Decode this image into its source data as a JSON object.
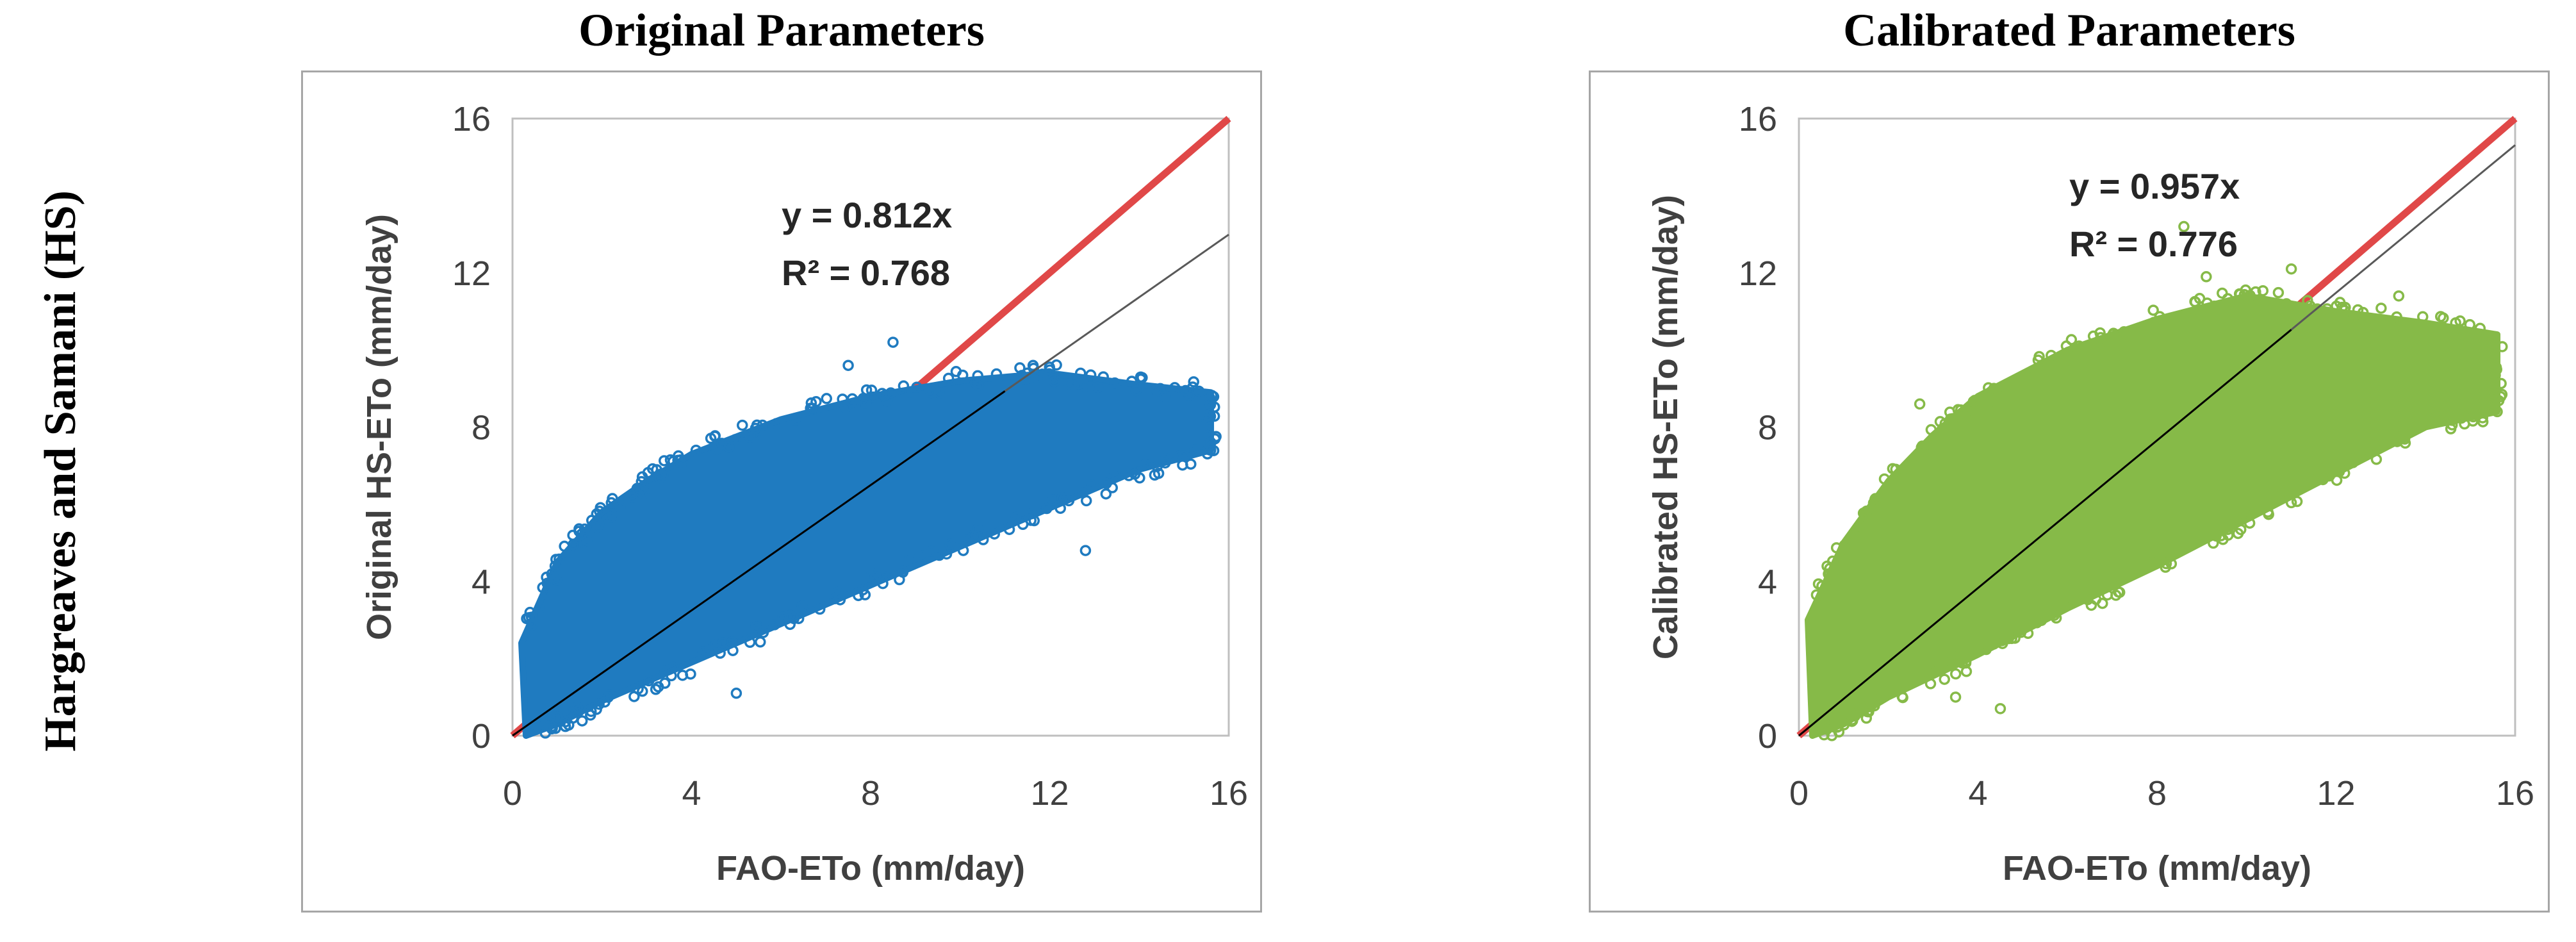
{
  "row_label": "Hargreaves and Samani (HS)",
  "colors": {
    "original_points": "#1f7bc0",
    "calibrated_points": "#86ba48",
    "one_to_one_line": "#e04848",
    "fit_line_black": "#000000",
    "fit_line_gray": "#595959"
  },
  "chart_data": [
    {
      "type": "scatter",
      "title": "Original Parameters",
      "xlabel": "FAO-ETo (mm/day)",
      "ylabel": "Original HS-ETo (mm/day)",
      "xlim": [
        0,
        16
      ],
      "ylim": [
        0,
        16
      ],
      "xticks": [
        "0",
        "4",
        "8",
        "12",
        "16"
      ],
      "yticks": [
        "0",
        "4",
        "8",
        "12",
        "16"
      ],
      "equation": "y = 0.812x",
      "r2": "R² = 0.768",
      "slope": 0.812,
      "series_color": "#1f7bc0",
      "cloud_envelope": {
        "upper": [
          [
            0.2,
            2.4
          ],
          [
            1,
            4.5
          ],
          [
            2,
            5.8
          ],
          [
            3,
            6.6
          ],
          [
            4,
            7.3
          ],
          [
            6,
            8.2
          ],
          [
            8,
            8.8
          ],
          [
            10,
            9.2
          ],
          [
            12,
            9.4
          ],
          [
            14,
            9.1
          ],
          [
            15.6,
            8.9
          ]
        ],
        "lower": [
          [
            15.6,
            7.4
          ],
          [
            14,
            6.9
          ],
          [
            12,
            5.9
          ],
          [
            10,
            4.9
          ],
          [
            8,
            3.9
          ],
          [
            6,
            2.9
          ],
          [
            4,
            1.9
          ],
          [
            2,
            0.9
          ],
          [
            1,
            0.3
          ],
          [
            0.3,
            0.0
          ]
        ]
      },
      "outliers": [
        [
          8.5,
          10.2
        ],
        [
          4.1,
          7.4
        ],
        [
          11.5,
          9.4
        ],
        [
          15.6,
          7.6
        ],
        [
          3.2,
          1.2
        ],
        [
          5,
          1.1
        ],
        [
          12.8,
          4.8
        ],
        [
          7.5,
          9.6
        ]
      ]
    },
    {
      "type": "scatter",
      "title": "Calibrated Parameters",
      "xlabel": "FAO-ETo (mm/day)",
      "ylabel": "Calibrated HS-ETo (mm/day)",
      "xlim": [
        0,
        16
      ],
      "ylim": [
        0,
        16
      ],
      "xticks": [
        "0",
        "4",
        "8",
        "12",
        "16"
      ],
      "yticks": [
        "0",
        "4",
        "8",
        "12",
        "16"
      ],
      "equation": "y = 0.957x",
      "r2": "R² = 0.776",
      "slope": 0.957,
      "series_color": "#86ba48",
      "cloud_envelope": {
        "upper": [
          [
            0.2,
            3.0
          ],
          [
            1,
            5.0
          ],
          [
            2,
            6.6
          ],
          [
            3,
            7.8
          ],
          [
            4,
            8.8
          ],
          [
            6,
            10.0
          ],
          [
            8,
            10.8
          ],
          [
            10,
            11.4
          ],
          [
            12,
            11.0
          ],
          [
            14,
            10.7
          ],
          [
            15.6,
            10.4
          ]
        ],
        "lower": [
          [
            15.6,
            8.4
          ],
          [
            14,
            8.0
          ],
          [
            12,
            6.8
          ],
          [
            10,
            5.6
          ],
          [
            8,
            4.4
          ],
          [
            6,
            3.3
          ],
          [
            4,
            2.1
          ],
          [
            2,
            1.0
          ],
          [
            1,
            0.3
          ],
          [
            0.3,
            0.0
          ]
        ]
      },
      "outliers": [
        [
          8.6,
          13.2
        ],
        [
          9.1,
          11.9
        ],
        [
          4.5,
          0.7
        ],
        [
          2.7,
          8.6
        ],
        [
          15.6,
          8.4
        ],
        [
          13.4,
          11.4
        ],
        [
          3.5,
          1.0
        ],
        [
          11,
          12.1
        ]
      ]
    }
  ]
}
